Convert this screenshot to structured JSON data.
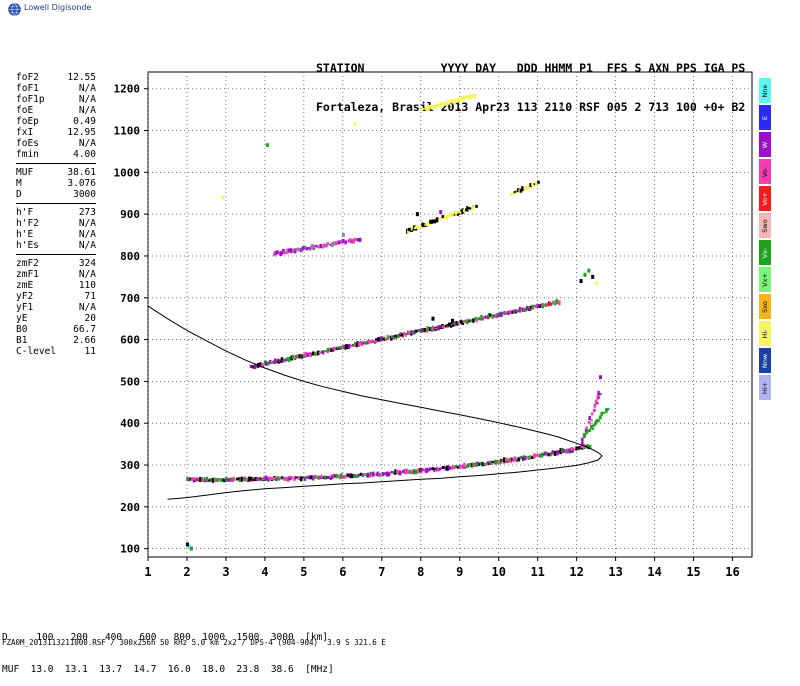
{
  "logo_text": "Lowell Digisonde",
  "header": {
    "line1": "STATION           YYYY DAY   DDD HHMM P1  FFS S AXN PPS IGA PS",
    "line2": "Fortaleza, Brasil 2013 Apr23 113 2110 RSF 005 2 713 100 +0+ B2"
  },
  "param_groups": [
    [
      {
        "label": "foF2",
        "value": "12.55"
      },
      {
        "label": "foF1",
        "value": "N/A"
      },
      {
        "label": "foF1p",
        "value": "N/A"
      },
      {
        "label": "foE",
        "value": "N/A"
      },
      {
        "label": "foEp",
        "value": "0.49"
      },
      {
        "label": "fxI",
        "value": "12.95"
      },
      {
        "label": "foEs",
        "value": "N/A"
      },
      {
        "label": "fmin",
        "value": "4.00"
      }
    ],
    [
      {
        "label": "MUF",
        "value": "38.61"
      },
      {
        "label": "M",
        "value": "3.076"
      },
      {
        "label": "D",
        "value": "3000"
      }
    ],
    [
      {
        "label": "h'F",
        "value": "273"
      },
      {
        "label": "h'F2",
        "value": "N/A"
      },
      {
        "label": "h'E",
        "value": "N/A"
      },
      {
        "label": "h'Es",
        "value": "N/A"
      }
    ],
    [
      {
        "label": "zmF2",
        "value": "324"
      },
      {
        "label": "zmF1",
        "value": "N/A"
      },
      {
        "label": "zmE",
        "value": "110"
      },
      {
        "label": "yF2",
        "value": "71"
      },
      {
        "label": "yF1",
        "value": "N/A"
      },
      {
        "label": "yE",
        "value": "20"
      },
      {
        "label": "B0",
        "value": "66.7"
      },
      {
        "label": "B1",
        "value": "2.66"
      },
      {
        "label": "C-level",
        "value": "11"
      }
    ]
  ],
  "legend": [
    {
      "label": "Nne",
      "color": "#5ff5f0"
    },
    {
      "label": "E",
      "color": "#2b2bf5"
    },
    {
      "label": "W",
      "color": "#9a10c8"
    },
    {
      "label": "Vo-",
      "color": "#f53fb0"
    },
    {
      "label": "Vo+",
      "color": "#f51b1b"
    },
    {
      "label": "Swo",
      "color": "#f5b5b5"
    },
    {
      "label": "Vx-",
      "color": "#1fa31f"
    },
    {
      "label": "Vx+",
      "color": "#7af57a"
    },
    {
      "label": "Sxo",
      "color": "#f5b41f"
    },
    {
      "label": "Hi-",
      "color": "#f5f55f"
    },
    {
      "label": "Nnw",
      "color": "#1a3fa0"
    },
    {
      "label": "Hi+",
      "color": "#b4b4f5"
    }
  ],
  "bottom_table": {
    "row1": "D     100   200   400   600   800  1000  1500  3000  [km]",
    "row2": "MUF  13.0  13.1  13.7  14.7  16.0  18.0  23.8  38.6  [MHz]"
  },
  "footer": "FZA0M_2013113211000.RSF / 300x256h 50 kHz 5.0 km 2x2 / DPS-4 (904-904)  3.9 S 321.6 E",
  "chart_data": {
    "type": "scatter",
    "xlim": [
      1,
      16.5
    ],
    "ylim": [
      80,
      1240
    ],
    "x_ticks": [
      1,
      2,
      3,
      4,
      5,
      6,
      7,
      8,
      9,
      10,
      11,
      12,
      13,
      14,
      15,
      16
    ],
    "y_ticks": [
      100,
      200,
      300,
      400,
      500,
      600,
      700,
      800,
      900,
      1000,
      1100,
      1200
    ],
    "grid": true,
    "colors": {
      "magenta": "#f53fb0",
      "green": "#1fa31f",
      "yellow": "#f5f55f",
      "purple": "#9a10c8",
      "black": "#000000",
      "cyan": "#5ff5f0",
      "red": "#f51b1b",
      "lightgreen": "#7af57a",
      "grey": "#8888aa"
    },
    "trace_segments": [
      {
        "name": "F-ordinary",
        "x_start": 2.0,
        "x_end": 12.3,
        "y_start": 265,
        "y_end": 345,
        "shape": "flat-then-rise",
        "colors": [
          "magenta",
          "green",
          "black",
          "purple"
        ]
      },
      {
        "name": "F-ordinary-cusp",
        "x_start": 12.1,
        "x_end": 12.55,
        "y_start": 350,
        "y_end": 470,
        "shape": "linear",
        "colors": [
          "magenta",
          "purple"
        ]
      },
      {
        "name": "F-extraordinary-cusp",
        "x_start": 12.2,
        "x_end": 12.75,
        "y_start": 370,
        "y_end": 435,
        "shape": "linear",
        "colors": [
          "green"
        ]
      },
      {
        "name": "F-second-hop",
        "x_start": 3.6,
        "x_end": 11.5,
        "y_start": 535,
        "y_end": 690,
        "shape": "linear",
        "colors": [
          "magenta",
          "green",
          "black",
          "purple"
        ]
      },
      {
        "name": "F-third-hop",
        "x_start": 4.2,
        "x_end": 6.4,
        "y_start": 805,
        "y_end": 840,
        "shape": "linear",
        "colors": [
          "magenta",
          "purple",
          "grey"
        ]
      },
      {
        "name": "third-hop-yellow",
        "x_start": 7.6,
        "x_end": 9.4,
        "y_start": 860,
        "y_end": 920,
        "shape": "linear",
        "colors": [
          "yellow",
          "black"
        ]
      },
      {
        "name": "fourth-hop-yellow",
        "x_start": 8.0,
        "x_end": 9.4,
        "y_start": 1150,
        "y_end": 1185,
        "shape": "linear",
        "colors": [
          "yellow"
        ]
      },
      {
        "name": "high-yellow-right",
        "x_start": 10.3,
        "x_end": 11.0,
        "y_start": 950,
        "y_end": 975,
        "shape": "linear",
        "colors": [
          "yellow",
          "black"
        ]
      }
    ],
    "scatter_points": [
      {
        "x": 2.05,
        "y": 105,
        "c": "cyan"
      },
      {
        "x": 2.1,
        "y": 100,
        "c": "green"
      },
      {
        "x": 2.0,
        "y": 110,
        "c": "black"
      },
      {
        "x": 4.05,
        "y": 1065,
        "c": "green"
      },
      {
        "x": 6.3,
        "y": 1115,
        "c": "yellow"
      },
      {
        "x": 11.6,
        "y": 1155,
        "c": "grey"
      },
      {
        "x": 2.9,
        "y": 940,
        "c": "yellow"
      },
      {
        "x": 12.1,
        "y": 740,
        "c": "black"
      },
      {
        "x": 12.2,
        "y": 755,
        "c": "green"
      },
      {
        "x": 12.3,
        "y": 765,
        "c": "green"
      },
      {
        "x": 12.5,
        "y": 735,
        "c": "yellow"
      },
      {
        "x": 12.4,
        "y": 750,
        "c": "black"
      },
      {
        "x": 12.6,
        "y": 510,
        "c": "purple"
      },
      {
        "x": 8.3,
        "y": 650,
        "c": "black"
      },
      {
        "x": 8.8,
        "y": 645,
        "c": "black"
      },
      {
        "x": 7.9,
        "y": 900,
        "c": "black"
      },
      {
        "x": 8.5,
        "y": 905,
        "c": "purple"
      },
      {
        "x": 6.0,
        "y": 850,
        "c": "grey"
      },
      {
        "x": 11.3,
        "y": 685,
        "c": "red"
      }
    ],
    "profile_curve": [
      [
        1.0,
        680
      ],
      [
        1.5,
        650
      ],
      [
        2.0,
        622
      ],
      [
        2.5,
        597
      ],
      [
        3.0,
        573
      ],
      [
        3.5,
        551
      ],
      [
        4.0,
        532
      ],
      [
        4.5,
        515
      ],
      [
        5.0,
        500
      ],
      [
        5.5,
        487
      ],
      [
        6.0,
        476
      ],
      [
        6.5,
        465
      ],
      [
        7.0,
        456
      ],
      [
        7.5,
        447
      ],
      [
        8.0,
        438
      ],
      [
        8.5,
        429
      ],
      [
        9.0,
        420
      ],
      [
        9.5,
        411
      ],
      [
        10.0,
        401
      ],
      [
        10.5,
        391
      ],
      [
        11.0,
        380
      ],
      [
        11.5,
        368
      ],
      [
        12.0,
        352
      ],
      [
        12.3,
        342
      ],
      [
        12.55,
        330
      ],
      [
        12.65,
        322
      ],
      [
        12.55,
        312
      ],
      [
        12.3,
        305
      ],
      [
        12.0,
        299
      ],
      [
        11.5,
        293
      ],
      [
        11.0,
        288
      ],
      [
        10.5,
        283
      ],
      [
        10.0,
        279
      ],
      [
        9.5,
        275
      ],
      [
        9.0,
        272
      ],
      [
        8.5,
        268
      ],
      [
        8.0,
        266
      ],
      [
        7.5,
        263
      ],
      [
        7.0,
        260
      ],
      [
        6.5,
        257
      ],
      [
        6.0,
        255
      ],
      [
        5.5,
        252
      ],
      [
        5.0,
        249
      ],
      [
        4.5,
        246
      ],
      [
        4.0,
        243
      ],
      [
        3.5,
        239
      ],
      [
        3.0,
        234
      ],
      [
        2.5,
        228
      ],
      [
        2.0,
        222
      ],
      [
        1.5,
        218
      ]
    ]
  }
}
